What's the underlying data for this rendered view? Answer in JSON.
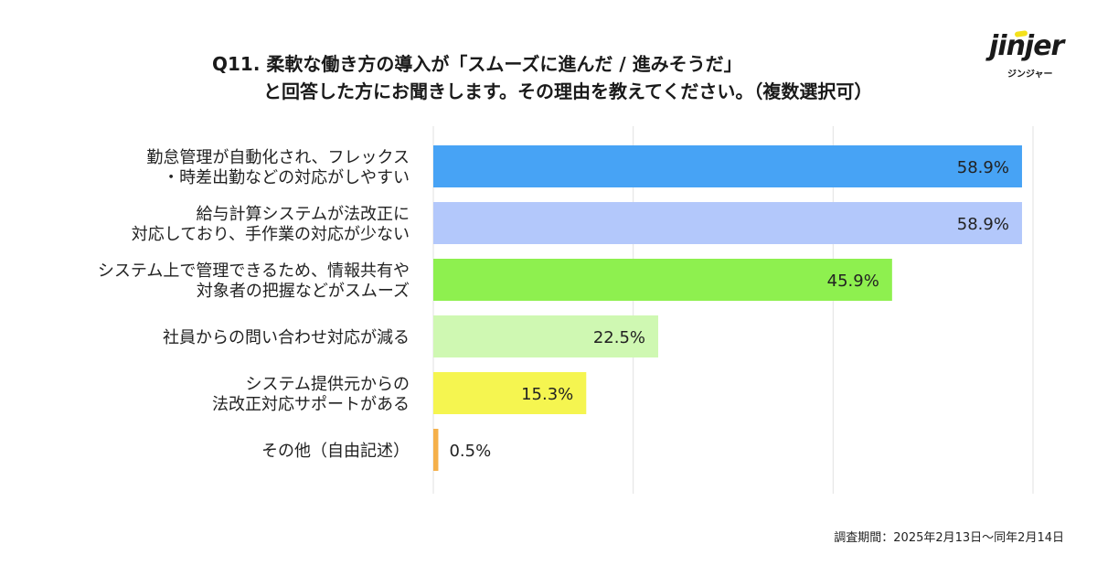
{
  "header": {
    "title_line1": "Q11. 柔軟な働き方の導入が「スムーズに進んだ / 進みそうだ」",
    "title_line2": "と回答した方にお聞きします。その理由を教えてください。（複数選択可）"
  },
  "logo": {
    "word": "jinjer",
    "sub": "ジンジャー",
    "accent": "#f4e11b"
  },
  "chart_data": {
    "type": "bar",
    "orientation": "horizontal",
    "unit": "%",
    "xlim": [
      0,
      60
    ],
    "grid": true,
    "categories": [
      [
        "勤怠管理が自動化され、フレックス",
        "・時差出勤などの対応がしやすい"
      ],
      [
        "給与計算システムが法改正に",
        "対応しており、手作業の対応が少ない"
      ],
      [
        "システム上で管理できるため、情報共有や",
        "対象者の把握などがスムーズ"
      ],
      [
        "社員からの問い合わせ対応が減る"
      ],
      [
        "システム提供元からの",
        "法改正対応サポートがある"
      ],
      [
        "その他（自由記述）"
      ]
    ],
    "values": [
      58.9,
      58.9,
      45.9,
      22.5,
      15.3,
      0.5
    ],
    "value_labels": [
      "58.9%",
      "58.9%",
      "45.9%",
      "22.5%",
      "15.3%",
      "0.5%"
    ],
    "colors": [
      "#47a3f5",
      "#b3c8fb",
      "#8ef04f",
      "#cff8b2",
      "#f5f550",
      "#f5b04a"
    ]
  },
  "footer": {
    "period": "調査期間：2025年2月13日〜同年2月14日"
  }
}
